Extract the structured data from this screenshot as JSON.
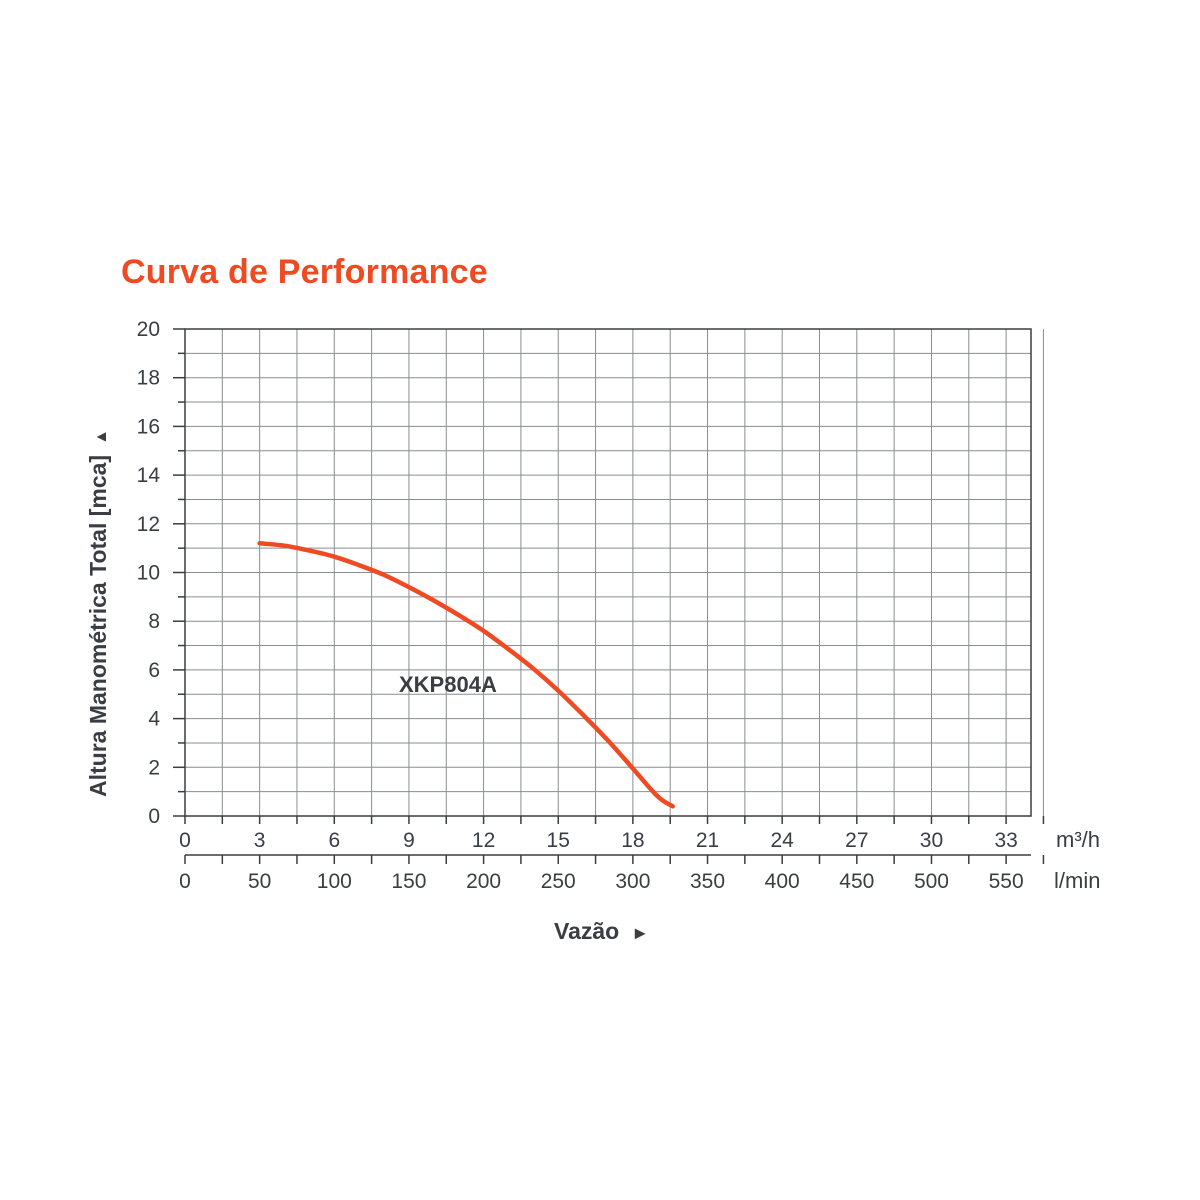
{
  "colors": {
    "accent": "#f04a23",
    "text": "#3a3d42",
    "grid": "#8a8d91",
    "axis": "#3a3d42",
    "background": "#ffffff"
  },
  "chart_data": {
    "type": "line",
    "title": "Curva de Performance",
    "ylabel": "Altura Manométrica Total [mca]",
    "xlabel": "Vazão",
    "y_arrow": "▲",
    "x_arrow": "►",
    "ylim": [
      0,
      20
    ],
    "xlim": [
      0,
      34
    ],
    "y_ticks": [
      "0",
      "2",
      "4",
      "6",
      "8",
      "10",
      "12",
      "14",
      "16",
      "18",
      "20"
    ],
    "x_ticks_primary": [
      "0",
      "3",
      "6",
      "9",
      "12",
      "15",
      "18",
      "21",
      "24",
      "27",
      "30",
      "33"
    ],
    "x_ticks_primary_values": [
      0,
      3,
      6,
      9,
      12,
      15,
      18,
      21,
      24,
      27,
      30,
      33
    ],
    "x_unit_primary": "m³/h",
    "x_ticks_secondary": [
      "0",
      "50",
      "100",
      "150",
      "200",
      "250",
      "300",
      "350",
      "400",
      "450",
      "500",
      "550"
    ],
    "x_ticks_secondary_values": [
      0,
      3,
      6,
      9,
      12,
      15,
      18,
      21,
      24,
      27,
      30,
      33
    ],
    "x_unit_secondary": "l/min",
    "grid": true,
    "series": [
      {
        "name": "XKP804A",
        "x": [
          3,
          4,
          5,
          6,
          7,
          8,
          9,
          10,
          11,
          12,
          13,
          14,
          15,
          16,
          17,
          18,
          19,
          19.6
        ],
        "y": [
          11.2,
          11.1,
          10.9,
          10.65,
          10.3,
          9.9,
          9.4,
          8.85,
          8.25,
          7.6,
          6.85,
          6.05,
          5.15,
          4.15,
          3.1,
          1.95,
          0.8,
          0.4
        ]
      }
    ]
  }
}
